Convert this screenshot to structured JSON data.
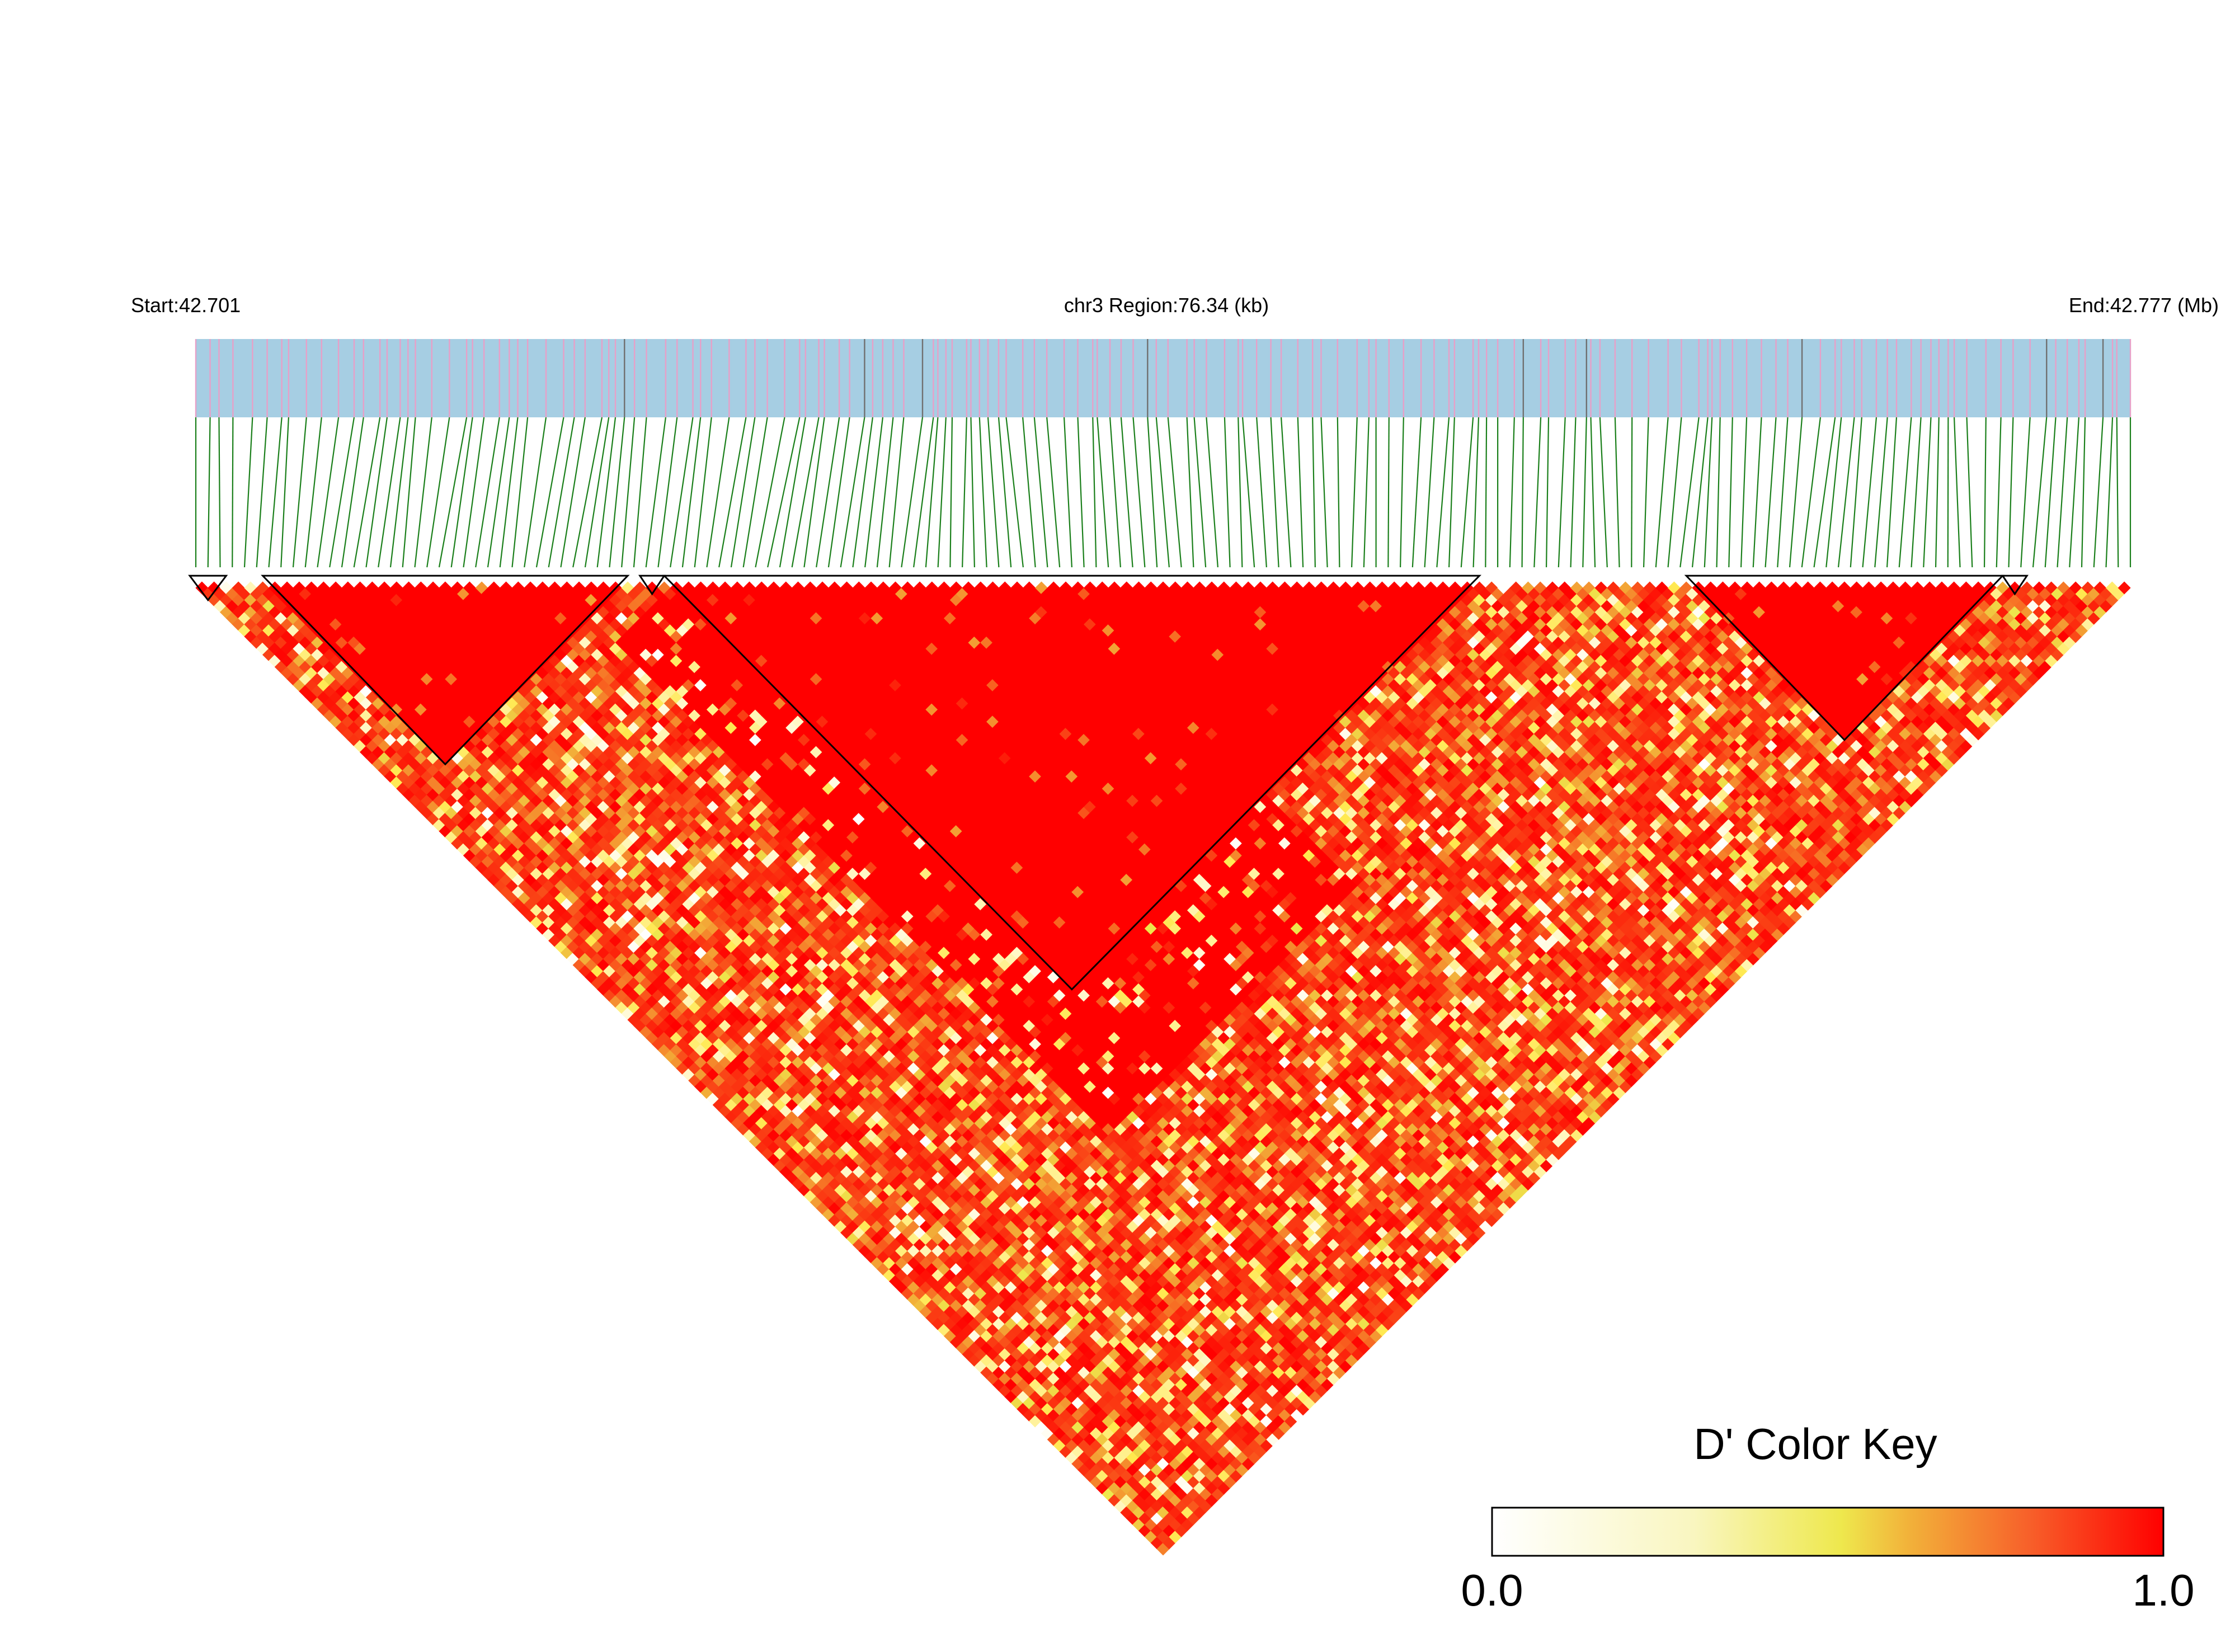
{
  "header": {
    "start_label": "Start:42.701",
    "region_label": "chr3 Region:76.34 (kb)",
    "end_label": "End:42.777 (Mb)"
  },
  "colors": {
    "track_fill": "#a6cee3",
    "snp_mark": "#e7a0c8",
    "snp_mark_dark": "#707070",
    "connector": "#1a7f1a",
    "block_outline": "#000000",
    "scale_low": "#ffffff",
    "scale_mid": "#eee84d",
    "scale_high": "#ff0000"
  },
  "chart_data": {
    "type": "heatmap",
    "subtype": "linkage-disequilibrium-triangle",
    "measure": "D'",
    "chromosome": "chr3",
    "region_start_mb": 42.701,
    "region_end_mb": 42.777,
    "region_length_kb": 76.34,
    "snp_count": 160,
    "haplotype_blocks": [
      {
        "first_snp": 1,
        "last_snp": 3
      },
      {
        "first_snp": 7,
        "last_snp": 36
      },
      {
        "first_snp": 38,
        "last_snp": 39
      },
      {
        "first_snp": 40,
        "last_snp": 106
      },
      {
        "first_snp": 124,
        "last_snp": 149
      },
      {
        "first_snp": 150,
        "last_snp": 151
      }
    ],
    "color_key": {
      "title": "D' Color Key",
      "min_label": "0.0",
      "max_label": "1.0",
      "min": 0,
      "max": 1
    }
  }
}
